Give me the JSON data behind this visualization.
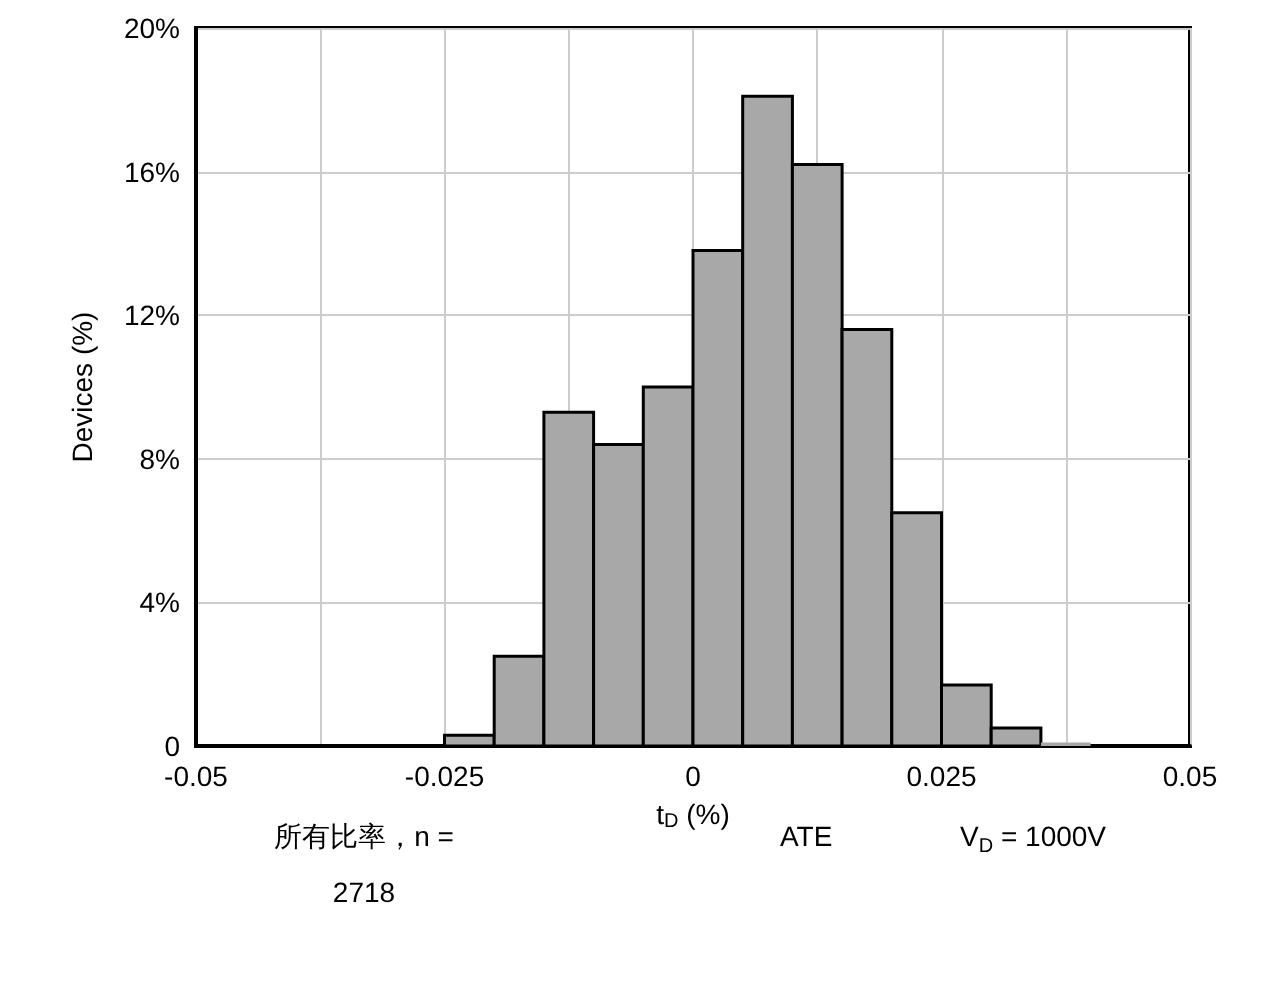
{
  "chart_data": {
    "type": "histogram",
    "xlabel": "t$_{D}$ (%)",
    "ylabel": "Devices (%)",
    "bins": [
      -0.05,
      -0.045,
      -0.04,
      -0.035,
      -0.03,
      -0.025,
      -0.02,
      -0.015,
      -0.01,
      -0.005,
      0,
      0.005,
      0.01,
      0.015,
      0.02,
      0.025,
      0.03,
      0.035,
      0.04,
      0.045,
      0.05
    ],
    "values": [
      null,
      0,
      null,
      null,
      0,
      0.3,
      2.5,
      9.3,
      8.4,
      10.0,
      13.8,
      18.1,
      16.2,
      11.6,
      6.5,
      1.7,
      0.5,
      0.1,
      0,
      null
    ],
    "color": "#a8a8a8",
    "xlim": [
      -0.05,
      0.05
    ],
    "xticks": [
      -0.05,
      {
        "value": -0.0375,
        "label": null
      },
      -0.025,
      {
        "value": -0.0125,
        "label": null
      },
      0,
      {
        "value": 0.0125,
        "label": null
      },
      0.025,
      {
        "value": 0.0375,
        "label": null
      },
      0.05
    ],
    "ylim": [
      0,
      20
    ],
    "yticks": [
      0,
      {
        "value": 4,
        "label": "4%"
      },
      {
        "value": 8,
        "label": "8%"
      },
      {
        "value": 12,
        "label": "12%"
      },
      {
        "value": 16,
        "label": "16%"
      },
      {
        "value": 20,
        "label": "20%"
      }
    ],
    "grid": true,
    "annotations": [
      "所有比率，n = 2718",
      "ATE",
      "V$_{D}$ = 1000V"
    ]
  }
}
